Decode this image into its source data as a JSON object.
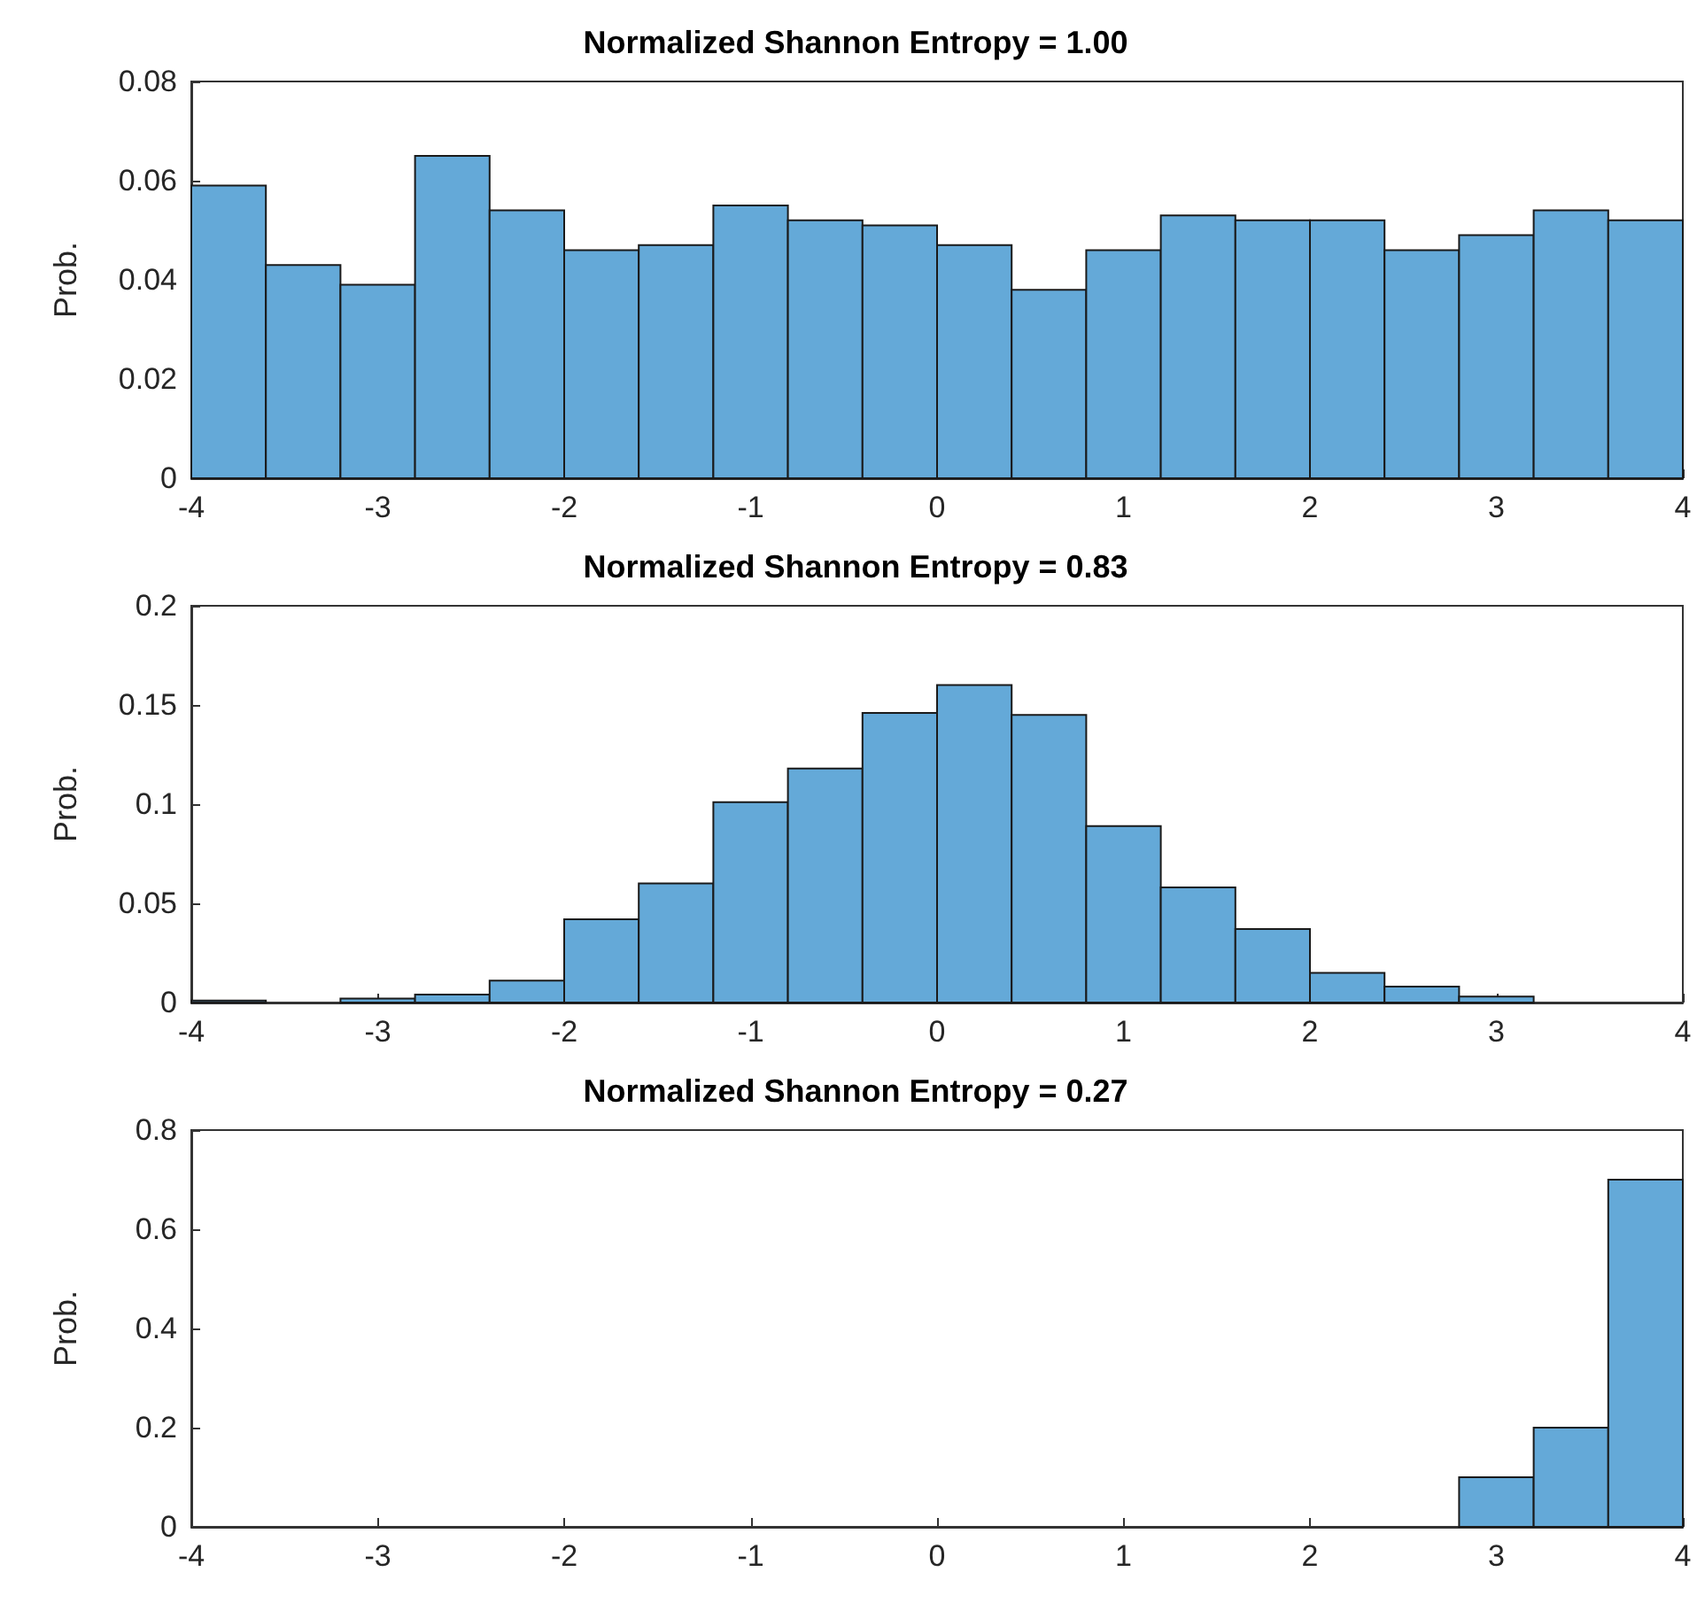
{
  "chart_data": [
    {
      "type": "histogram",
      "title": "Normalized Shannon Entropy = 1.00",
      "ylabel": "Prob.",
      "color": "#64a9d8",
      "bins": [
        -4,
        -3.6,
        -3.2,
        -2.8,
        -2.4,
        -2,
        -1.6,
        -1.2,
        -0.8,
        -0.4,
        0,
        0.4,
        0.8,
        1.2,
        1.6,
        2,
        2.4,
        2.8,
        3.2,
        3.6,
        4
      ],
      "values": [
        0.059,
        0.043,
        0.039,
        0.065,
        0.054,
        0.046,
        0.047,
        0.055,
        0.052,
        0.051,
        0.047,
        0.038,
        0.046,
        0.053,
        0.052,
        0.052,
        0.046,
        0.049,
        0.054,
        0.052
      ],
      "xlim": [
        -4,
        4
      ],
      "xticks": [
        -4,
        -3,
        -2,
        -1,
        0,
        1,
        2,
        3,
        4
      ],
      "ylim": [
        0,
        0.08
      ],
      "yticks": [
        0,
        0.02,
        0.04,
        0.06,
        0.08
      ],
      "grid": false
    },
    {
      "type": "histogram",
      "title": "Normalized Shannon Entropy = 0.83",
      "ylabel": "Prob.",
      "color": "#64a9d8",
      "bins": [
        -4,
        -3.6,
        -3.2,
        -2.8,
        -2.4,
        -2,
        -1.6,
        -1.2,
        -0.8,
        -0.4,
        0,
        0.4,
        0.8,
        1.2,
        1.6,
        2,
        2.4,
        2.8,
        3.2,
        3.6,
        4
      ],
      "values": [
        0.001,
        0,
        0.002,
        0.004,
        0.011,
        0.042,
        0.06,
        0.101,
        0.118,
        0.146,
        0.16,
        0.145,
        0.089,
        0.058,
        0.037,
        0.015,
        0.008,
        0.003,
        0,
        0
      ],
      "xlim": [
        -4,
        4
      ],
      "xticks": [
        -4,
        -3,
        -2,
        -1,
        0,
        1,
        2,
        3,
        4
      ],
      "ylim": [
        0,
        0.2
      ],
      "yticks": [
        0,
        0.05,
        0.1,
        0.15,
        0.2
      ],
      "grid": false
    },
    {
      "type": "histogram",
      "title": "Normalized Shannon Entropy = 0.27",
      "ylabel": "Prob.",
      "color": "#64a9d8",
      "bins": [
        -4,
        -3.6,
        -3.2,
        -2.8,
        -2.4,
        -2,
        -1.6,
        -1.2,
        -0.8,
        -0.4,
        0,
        0.4,
        0.8,
        1.2,
        1.6,
        2,
        2.4,
        2.8,
        3.2,
        3.6,
        4
      ],
      "values": [
        0,
        0,
        0,
        0,
        0,
        0,
        0,
        0,
        0,
        0,
        0,
        0,
        0,
        0,
        0,
        0,
        0,
        0.1,
        0.2,
        0.7
      ],
      "xlim": [
        -4,
        4
      ],
      "xticks": [
        -4,
        -3,
        -2,
        -1,
        0,
        1,
        2,
        3,
        4
      ],
      "ylim": [
        0,
        0.8
      ],
      "yticks": [
        0,
        0.2,
        0.4,
        0.6,
        0.8
      ],
      "grid": false
    }
  ]
}
